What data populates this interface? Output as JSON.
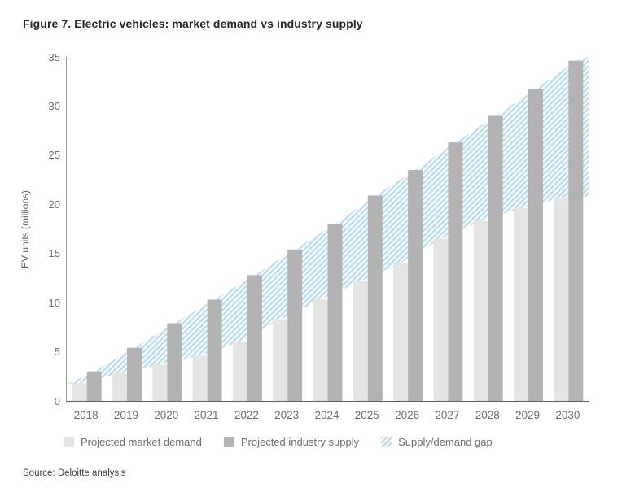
{
  "figure": {
    "title": "Figure 7. Electric vehicles: market demand vs industry supply",
    "source": "Source: Deloitte analysis"
  },
  "chart_data": {
    "type": "bar",
    "title": "Figure 7. Electric vehicles: market demand vs industry supply",
    "xlabel": "",
    "ylabel": "EV units (millions)",
    "ylim": [
      0,
      35
    ],
    "yticks": [
      0,
      5,
      10,
      15,
      20,
      25,
      30,
      35
    ],
    "grid": false,
    "legend_position": "bottom",
    "categories": [
      "2018",
      "2019",
      "2020",
      "2021",
      "2022",
      "2023",
      "2024",
      "2025",
      "2026",
      "2027",
      "2028",
      "2029",
      "2030"
    ],
    "series": [
      {
        "name": "Projected market demand",
        "type": "bar",
        "color": "#e4e4e2",
        "values": [
          1.8,
          2.8,
          3.7,
          4.6,
          6.0,
          8.3,
          10.3,
          12.2,
          14.0,
          16.5,
          18.3,
          19.6,
          20.6
        ]
      },
      {
        "name": "Projected industry supply",
        "type": "bar",
        "color": "#b3b3b3",
        "values": [
          3.0,
          5.4,
          7.9,
          10.3,
          12.8,
          15.4,
          18.0,
          20.9,
          23.5,
          26.3,
          29.0,
          31.7,
          34.6
        ]
      },
      {
        "name": "Supply/demand gap",
        "type": "area-hatch",
        "stripe_color": "#b9ddf2",
        "background_color": "#ffffff",
        "description": "hatched band between demand bar tops and supply bar tops",
        "left_origin_value": 1.7,
        "right_top_value": 35,
        "right_bottom_value": 20.8
      }
    ]
  },
  "colors": {
    "axis_spine": "#9a9a9a",
    "baseline": "#5f5f5f",
    "tick_label": "#6e6e6e",
    "title_text": "#262626",
    "legend_text": "#6e6e6e",
    "source_text": "#3c3c3c"
  }
}
